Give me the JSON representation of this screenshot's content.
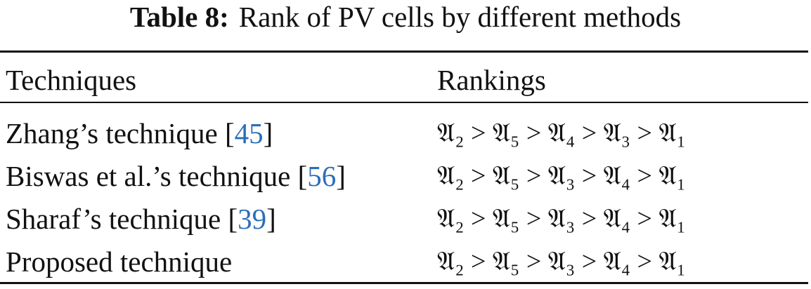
{
  "caption": {
    "label": "Table 8:",
    "text": "Rank of PV cells by different methods"
  },
  "table": {
    "headers": [
      "Techniques",
      "Rankings"
    ],
    "rows": [
      {
        "technique": "Zhang’s technique [",
        "cite": "45",
        "close": "]",
        "ranking": "𝔄₂ > 𝔄₅ > 𝔄₄ > 𝔄₃ > 𝔄₁"
      },
      {
        "technique": "Biswas et al.’s technique [",
        "cite": "56",
        "close": "]",
        "ranking": "𝔄₂ > 𝔄₅ > 𝔄₃ > 𝔄₄ > 𝔄₁"
      },
      {
        "technique": "Sharaf’s technique [",
        "cite": "39",
        "close": "]",
        "ranking": "𝔄₂ > 𝔄₅ > 𝔄₃ > 𝔄₄ > 𝔄₁"
      },
      {
        "technique": "Proposed technique",
        "cite": "",
        "close": "",
        "ranking": "𝔄₂ > 𝔄₅ > 𝔄₃ > 𝔄₄ > 𝔄₁"
      }
    ]
  },
  "colors": {
    "citation_link": "#2a6ebb"
  }
}
